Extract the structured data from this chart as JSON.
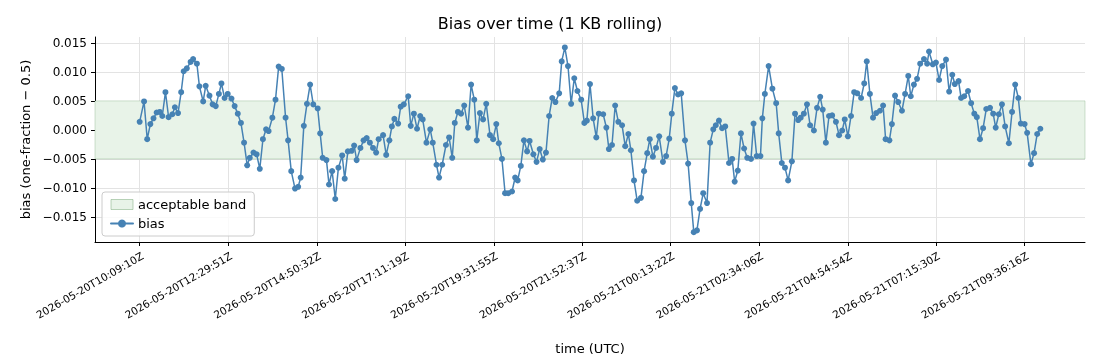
{
  "chart_data": {
    "type": "line",
    "title": "Bias over time (1 KB rolling)",
    "xlabel": "time (UTC)",
    "ylabel": "bias (one-fraction − 0.5)",
    "series": [
      {
        "name": "bias",
        "color": "#4682b4",
        "x": [
          "2026-05-20T10:09",
          "2026-05-20T10:16",
          "2026-05-20T10:21",
          "2026-05-20T10:26",
          "2026-05-20T10:31",
          "2026-05-20T10:36",
          "2026-05-20T10:41",
          "2026-05-20T10:45",
          "2026-05-20T10:50",
          "2026-05-20T10:55",
          "2026-05-20T11:01",
          "2026-05-20T11:05",
          "2026-05-20T11:10",
          "2026-05-20T11:15",
          "2026-05-20T11:19",
          "2026-05-20T11:24",
          "2026-05-20T11:30",
          "2026-05-20T11:34",
          "2026-05-20T11:40",
          "2026-05-20T11:44",
          "2026-05-20T11:50",
          "2026-05-20T11:54",
          "2026-05-20T12:00",
          "2026-05-20T12:05",
          "2026-05-20T12:10",
          "2026-05-20T12:15",
          "2026-05-20T12:19",
          "2026-05-20T12:24",
          "2026-05-20T12:29",
          "2026-05-20T12:35",
          "2026-05-20T12:40",
          "2026-05-20T12:45",
          "2026-05-20T12:50",
          "2026-05-20T12:55",
          "2026-05-20T13:00",
          "2026-05-20T13:04",
          "2026-05-20T13:10",
          "2026-05-20T13:15",
          "2026-05-20T13:20",
          "2026-05-20T13:25",
          "2026-05-20T13:30",
          "2026-05-20T13:34",
          "2026-05-20T13:40",
          "2026-05-20T13:45",
          "2026-05-20T13:50",
          "2026-05-20T13:55",
          "2026-05-20T14:01",
          "2026-05-20T14:05",
          "2026-05-20T14:10",
          "2026-05-20T14:16",
          "2026-05-20T14:21",
          "2026-05-20T14:25",
          "2026-05-20T14:30",
          "2026-05-20T14:35",
          "2026-05-20T14:40",
          "2026-05-20T14:45",
          "2026-05-20T14:52",
          "2026-05-20T14:56",
          "2026-05-20T15:00",
          "2026-05-20T15:06",
          "2026-05-20T15:10",
          "2026-05-20T15:15",
          "2026-05-20T15:20",
          "2026-05-20T15:25",
          "2026-05-20T15:31",
          "2026-05-20T15:35",
          "2026-05-20T15:40",
          "2026-05-20T15:46",
          "2026-05-20T15:50",
          "2026-05-20T15:54",
          "2026-05-20T16:00",
          "2026-05-20T16:05",
          "2026-05-20T16:10",
          "2026-05-20T16:15",
          "2026-05-20T16:20",
          "2026-05-20T16:25",
          "2026-05-20T16:29",
          "2026-05-20T16:36",
          "2026-05-20T16:41",
          "2026-05-20T16:46",
          "2026-05-20T16:50",
          "2026-05-20T16:54",
          "2026-05-20T17:00",
          "2026-05-20T17:04",
          "2026-05-20T17:09",
          "2026-05-20T17:16",
          "2026-05-20T17:20",
          "2026-05-20T17:25",
          "2026-05-20T17:30",
          "2026-05-20T17:35",
          "2026-05-20T17:39",
          "2026-05-20T17:45",
          "2026-05-20T17:51",
          "2026-05-20T17:55",
          "2026-05-20T18:01",
          "2026-05-20T18:05",
          "2026-05-20T18:10",
          "2026-05-20T18:16",
          "2026-05-20T18:21",
          "2026-05-20T18:26",
          "2026-05-20T18:30",
          "2026-05-20T18:35",
          "2026-05-20T18:40",
          "2026-05-20T18:45",
          "2026-05-20T18:51",
          "2026-05-20T18:56",
          "2026-05-20T19:01",
          "2026-05-20T19:05",
          "2026-05-20T19:10",
          "2026-05-20T19:15",
          "2026-05-20T19:20",
          "2026-05-20T19:26",
          "2026-05-20T19:31",
          "2026-05-20T19:36",
          "2026-05-20T19:40",
          "2026-05-20T19:45",
          "2026-05-20T19:50",
          "2026-05-20T19:55",
          "2026-05-20T20:01",
          "2026-05-20T20:06",
          "2026-05-20T20:10",
          "2026-05-20T20:15",
          "2026-05-20T20:20",
          "2026-05-20T20:25",
          "2026-05-20T20:29",
          "2026-05-20T20:35",
          "2026-05-20T20:40",
          "2026-05-20T20:45",
          "2026-05-20T20:50",
          "2026-05-20T20:55",
          "2026-05-20T21:00",
          "2026-05-20T21:05",
          "2026-05-20T21:10",
          "2026-05-20T21:16",
          "2026-05-20T21:20",
          "2026-05-20T21:25",
          "2026-05-20T21:30",
          "2026-05-20T21:35",
          "2026-05-20T21:40",
          "2026-05-20T21:45",
          "2026-05-20T21:51",
          "2026-05-20T21:56",
          "2026-05-20T22:00",
          "2026-05-20T22:05",
          "2026-05-20T22:10",
          "2026-05-20T22:15",
          "2026-05-20T22:19",
          "2026-05-20T22:26",
          "2026-05-20T22:31",
          "2026-05-20T22:35",
          "2026-05-20T22:40",
          "2026-05-20T22:45",
          "2026-05-20T22:50",
          "2026-05-20T22:56",
          "2026-05-20T23:01",
          "2026-05-20T23:06",
          "2026-05-20T23:10",
          "2026-05-20T23:15",
          "2026-05-20T23:20",
          "2026-05-20T23:26",
          "2026-05-20T23:31",
          "2026-05-20T23:36",
          "2026-05-20T23:40",
          "2026-05-20T23:45",
          "2026-05-20T23:50",
          "2026-05-20T23:55",
          "2026-05-21T00:01",
          "2026-05-21T00:06",
          "2026-05-21T00:11",
          "2026-05-21T00:15",
          "2026-05-21T00:20",
          "2026-05-21T00:25",
          "2026-05-21T00:30",
          "2026-05-21T00:36",
          "2026-05-21T00:41",
          "2026-05-21T00:46",
          "2026-05-21T00:50",
          "2026-05-21T00:55",
          "2026-05-21T01:00",
          "2026-05-21T01:05",
          "2026-05-21T01:11",
          "2026-05-21T01:16",
          "2026-05-21T01:21",
          "2026-05-21T01:25",
          "2026-05-21T01:30",
          "2026-05-21T01:35",
          "2026-05-21T01:40",
          "2026-05-21T01:46",
          "2026-05-21T01:51",
          "2026-05-21T01:55",
          "2026-05-21T02:00",
          "2026-05-21T02:05",
          "2026-05-21T02:10",
          "2026-05-21T02:15",
          "2026-05-21T02:21",
          "2026-05-21T02:25",
          "2026-05-21T02:30",
          "2026-05-21T02:36",
          "2026-05-21T02:39",
          "2026-05-21T02:43",
          "2026-05-21T02:49",
          "2026-05-21T02:55",
          "2026-05-21T03:01",
          "2026-05-21T03:05",
          "2026-05-21T03:10",
          "2026-05-21T03:15",
          "2026-05-21T03:20",
          "2026-05-21T03:26",
          "2026-05-21T03:31",
          "2026-05-21T03:36",
          "2026-05-21T03:40",
          "2026-05-21T03:45",
          "2026-05-21T03:50",
          "2026-05-21T03:55",
          "2026-05-21T04:01",
          "2026-05-21T04:06",
          "2026-05-21T04:11",
          "2026-05-21T04:15",
          "2026-05-21T04:20",
          "2026-05-21T04:25",
          "2026-05-21T04:30",
          "2026-05-21T04:36",
          "2026-05-21T04:41",
          "2026-05-21T04:46",
          "2026-05-21T04:50",
          "2026-05-21T04:55",
          "2026-05-21T05:00",
          "2026-05-21T05:05",
          "2026-05-21T05:10",
          "2026-05-21T05:16",
          "2026-05-21T05:21",
          "2026-05-21T05:25",
          "2026-05-21T05:30",
          "2026-05-21T05:35",
          "2026-05-21T05:40",
          "2026-05-21T05:46",
          "2026-05-21T05:51",
          "2026-05-21T05:55",
          "2026-05-21T06:01",
          "2026-05-21T06:05",
          "2026-05-21T06:10",
          "2026-05-21T06:15",
          "2026-05-21T06:21",
          "2026-05-21T06:26",
          "2026-05-21T06:31",
          "2026-05-21T06:35",
          "2026-05-21T06:40",
          "2026-05-21T06:45",
          "2026-05-21T06:50",
          "2026-05-21T06:56",
          "2026-05-21T07:01",
          "2026-05-21T07:04",
          "2026-05-21T07:10",
          "2026-05-21T07:15",
          "2026-05-21T07:20",
          "2026-05-21T07:25",
          "2026-05-21T07:31",
          "2026-05-21T07:36",
          "2026-05-21T07:41",
          "2026-05-21T07:45",
          "2026-05-21T07:51",
          "2026-05-21T07:55",
          "2026-05-21T08:00",
          "2026-05-21T08:06",
          "2026-05-21T08:11",
          "2026-05-21T08:16",
          "2026-05-21T08:20",
          "2026-05-21T08:25",
          "2026-05-21T08:30",
          "2026-05-21T08:35",
          "2026-05-21T08:41",
          "2026-05-21T08:46",
          "2026-05-21T08:50",
          "2026-05-21T08:55",
          "2026-05-21T09:00",
          "2026-05-21T09:05",
          "2026-05-21T09:11",
          "2026-05-21T09:16",
          "2026-05-21T09:21",
          "2026-05-21T09:26",
          "2026-05-21T09:30",
          "2026-05-21T09:36",
          "2026-05-21T09:40",
          "2026-05-21T09:46",
          "2026-05-21T09:51",
          "2026-05-21T09:56",
          "2026-05-21T10:01"
        ],
        "values": [
          0.0014,
          0.0049,
          -0.0016,
          0.001,
          0.002,
          0.003,
          0.0031,
          0.0024,
          0.0065,
          0.0022,
          0.0027,
          0.0039,
          0.0029,
          0.0065,
          0.0101,
          0.0106,
          0.0117,
          0.0122,
          0.0114,
          0.0075,
          0.0049,
          0.0076,
          0.0059,
          0.0044,
          0.0041,
          0.0062,
          0.008,
          0.0055,
          0.0062,
          0.0054,
          0.0041,
          0.0028,
          0.0012,
          -0.0022,
          -0.0061,
          -0.0048,
          -0.0039,
          -0.0042,
          -0.0067,
          -0.0016,
          0.0001,
          -0.0002,
          0.0021,
          0.0052,
          0.0109,
          0.0105,
          0.0021,
          -0.0018,
          -0.0071,
          -0.0101,
          -0.0098,
          -0.0082,
          0.0007,
          0.0045,
          0.0078,
          0.0044,
          0.0037,
          -0.0006,
          -0.0048,
          -0.0052,
          -0.0094,
          -0.0071,
          -0.0119,
          -0.0065,
          -0.0044,
          -0.0084,
          -0.0037,
          -0.0036,
          -0.0027,
          -0.0052,
          -0.0031,
          -0.0018,
          -0.0014,
          -0.0022,
          -0.0031,
          -0.0039,
          -0.0016,
          -0.0009,
          -0.0043,
          -0.0018,
          0.0006,
          0.0019,
          0.0011,
          0.004,
          0.0044,
          0.0058,
          0.0007,
          0.0028,
          0.0002,
          0.0024,
          0.0018,
          -0.0022,
          0.0001,
          -0.0022,
          -0.006,
          -0.0082,
          -0.006,
          -0.0026,
          -0.0013,
          -0.0048,
          0.0012,
          0.0031,
          0.0028,
          0.0042,
          0.0004,
          0.0078,
          0.0052,
          -0.0018,
          0.0029,
          0.0018,
          0.0045,
          -0.0009,
          -0.0016,
          0.001,
          -0.0023,
          -0.005,
          -0.0109,
          -0.0109,
          -0.0106,
          -0.0082,
          -0.0087,
          -0.0062,
          -0.0018,
          -0.0037,
          -0.0019,
          -0.0042,
          -0.0055,
          -0.0033,
          -0.0051,
          -0.0039,
          0.0024,
          0.0055,
          0.0048,
          0.0063,
          0.0118,
          0.0142,
          0.011,
          0.0045,
          0.0089,
          0.0067,
          0.0052,
          0.0012,
          0.0016,
          0.0079,
          0.002,
          -0.0013,
          0.0028,
          0.0027,
          0.0004,
          -0.0033,
          -0.0026,
          0.0042,
          0.0014,
          0.0008,
          -0.0028,
          -0.0007,
          -0.0035,
          -0.0087,
          -0.0122,
          -0.0117,
          -0.0071,
          -0.004,
          -0.0016,
          -0.0046,
          -0.0031,
          -0.0011,
          -0.0055,
          -0.0045,
          -0.0015,
          0.0028,
          0.0072,
          0.0061,
          0.0063,
          -0.0018,
          -0.0058,
          -0.0126,
          -0.0176,
          -0.0173,
          -0.0136,
          -0.0109,
          -0.0126,
          -0.0022,
          0.0001,
          0.0008,
          0.0016,
          0.0003,
          0.0006,
          -0.0057,
          -0.005,
          -0.0089,
          -0.007,
          -0.0006,
          -0.0032,
          -0.0048,
          -0.005,
          0.0011,
          -0.0045,
          -0.0045,
          0.002,
          0.0062,
          0.011,
          0.0071,
          0.0046,
          -0.0006,
          -0.0057,
          -0.0065,
          -0.0087,
          -0.0054,
          0.0028,
          0.0017,
          0.0021,
          0.0028,
          0.0044,
          0.0008,
          -0.0001,
          0.0038,
          0.0057,
          0.0035,
          -0.0022,
          0.0024,
          0.0025,
          0.0014,
          -0.0009,
          -0.0001,
          0.0018,
          -0.0011,
          0.0024,
          0.0065,
          0.0063,
          0.0055,
          0.008,
          0.0118,
          0.0062,
          0.0021,
          0.0029,
          0.0033,
          0.0042,
          -0.0016,
          -0.0018,
          0.001,
          0.0059,
          0.0048,
          0.0033,
          0.0062,
          0.0093,
          0.0058,
          0.0078,
          0.0088,
          0.0114,
          0.0122,
          0.0114,
          0.0135,
          0.0113,
          0.0116,
          0.0086,
          0.011,
          0.0121,
          0.0066,
          0.0095,
          0.0079,
          0.0084,
          0.0055,
          0.0058,
          0.0067,
          0.0046,
          0.0028,
          0.0022,
          -0.0016,
          0.0003,
          0.0036,
          0.0038,
          0.0028,
          0.0004,
          0.0027,
          0.0044,
          0.0006,
          -0.0023,
          0.0031,
          0.0078,
          0.0055,
          0.0011,
          0.001,
          -0.0005,
          -0.0059,
          -0.004,
          -0.0007,
          0.0002
        ]
      }
    ],
    "xlim": [
      "2026-05-20T08:58",
      "2026-05-21T11:12"
    ],
    "xticks": [
      {
        "value": "2026-05-20T10:09",
        "label": "2026-05-20T10:09:10Z"
      },
      {
        "value": "2026-05-20T12:30",
        "label": "2026-05-20T12:29:51Z"
      },
      {
        "value": "2026-05-20T14:51",
        "label": "2026-05-20T14:50:32Z"
      },
      {
        "value": "2026-05-20T17:11",
        "label": "2026-05-20T17:11:19Z"
      },
      {
        "value": "2026-05-20T19:32",
        "label": "2026-05-20T19:31:55Z"
      },
      {
        "value": "2026-05-20T21:53",
        "label": "2026-05-20T21:52:37Z"
      },
      {
        "value": "2026-05-21T00:13",
        "label": "2026-05-21T00:13:22Z"
      },
      {
        "value": "2026-05-21T02:34",
        "label": "2026-05-21T02:34:06Z"
      },
      {
        "value": "2026-05-21T04:55",
        "label": "2026-05-21T04:54:54Z"
      },
      {
        "value": "2026-05-21T07:15",
        "label": "2026-05-21T07:15:30Z"
      },
      {
        "value": "2026-05-21T09:36",
        "label": "2026-05-21T09:36:16Z"
      }
    ],
    "ylim": [
      -0.0193,
      0.016
    ],
    "yticks": [
      {
        "value": -0.015,
        "label": "−0.015"
      },
      {
        "value": -0.01,
        "label": "−0.010"
      },
      {
        "value": -0.005,
        "label": "−0.005"
      },
      {
        "value": 0,
        "label": "0.000"
      },
      {
        "value": 0.005,
        "label": "0.005"
      },
      {
        "value": 0.01,
        "label": "0.010"
      },
      {
        "value": 0.015,
        "label": "0.015"
      }
    ],
    "bands": [
      {
        "axis": "y",
        "from": -0.005,
        "to": 0.005,
        "label": "acceptable band",
        "color": "#e8f3e8"
      }
    ],
    "grid": true,
    "legend": "bottom left",
    "marker": "circle",
    "line_style": "solid"
  }
}
